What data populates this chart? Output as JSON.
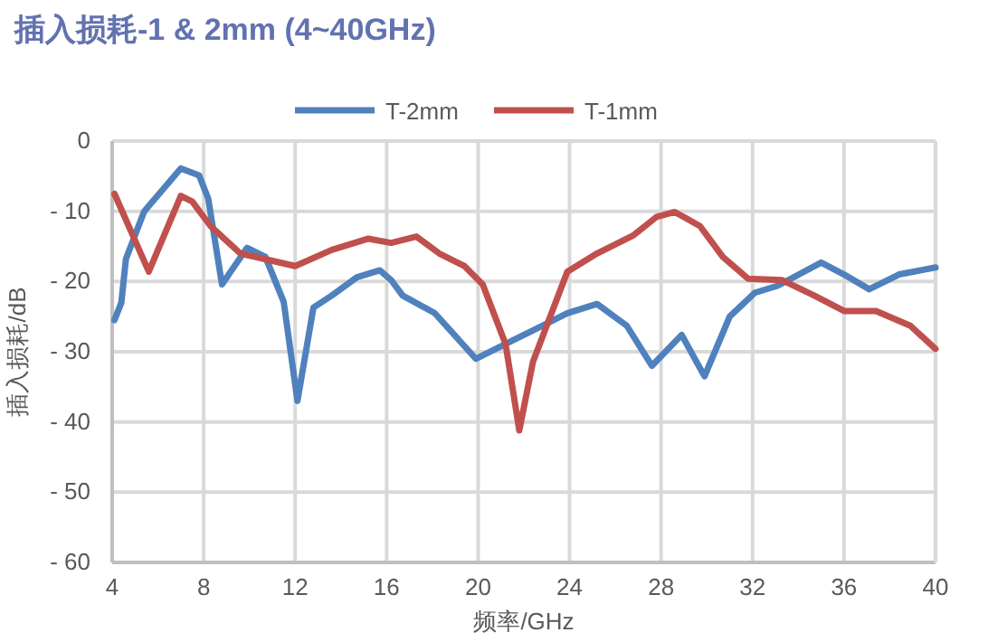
{
  "chart_data": {
    "type": "line",
    "title": "插入损耗-1 & 2mm (4~40GHz)",
    "xlabel": "频率/GHz",
    "ylabel": "插入损耗/dB",
    "series": [
      {
        "name": "T-2mm",
        "color": "#4f81bd",
        "x": [
          4.1,
          4.4,
          4.6,
          5.4,
          7.0,
          7.8,
          8.2,
          8.8,
          9.9,
          10.7,
          11.5,
          12.1,
          12.8,
          13.6,
          14.7,
          15.7,
          16.2,
          16.7,
          18.1,
          19.9,
          21.5,
          22.8,
          23.9,
          25.2,
          26.5,
          27.6,
          28.9,
          29.9,
          31.0,
          32.1,
          33.1,
          35.0,
          36.0,
          37.1,
          38.4,
          40.0
        ],
        "values": [
          -25.5,
          -23,
          -16.8,
          -10,
          -3.9,
          -4.9,
          -8.2,
          -20.4,
          -15.2,
          -16.5,
          -22.9,
          -37,
          -23.7,
          -22,
          -19.4,
          -18.4,
          -19.8,
          -22,
          -24.5,
          -31,
          -28.4,
          -26.3,
          -24.5,
          -23.2,
          -26.3,
          -32,
          -27.6,
          -33.5,
          -25,
          -21.6,
          -20.6,
          -17.3,
          -19,
          -21.1,
          -19,
          -18
        ]
      },
      {
        "name": "T-1mm",
        "color": "#c0504d",
        "x": [
          4.1,
          5.6,
          7.0,
          7.5,
          8.3,
          9.6,
          12.0,
          13.6,
          15.2,
          16.2,
          17.3,
          18.3,
          19.4,
          20.2,
          21.2,
          21.8,
          22.4,
          23.9,
          25.2,
          26.8,
          27.8,
          28.6,
          29.7,
          30.7,
          31.8,
          33.3,
          34.7,
          36.0,
          37.4,
          38.9,
          40.0
        ],
        "values": [
          -7.5,
          -18.6,
          -7.8,
          -8.6,
          -12.1,
          -16,
          -17.8,
          -15.5,
          -13.9,
          -14.5,
          -13.6,
          -16,
          -17.8,
          -20.4,
          -28.9,
          -41.2,
          -31.4,
          -18.6,
          -16,
          -13.4,
          -10.8,
          -10.1,
          -12.1,
          -16.5,
          -19.6,
          -19.8,
          -22,
          -24.2,
          -24.2,
          -26.3,
          -29.6
        ]
      }
    ],
    "xlim": [
      4,
      40
    ],
    "xticks": [
      4,
      8,
      12,
      16,
      20,
      24,
      28,
      32,
      36,
      40
    ],
    "ylim": [
      -60,
      0
    ],
    "yticks": [
      -60,
      -50,
      -40,
      -30,
      -20,
      -10,
      0
    ],
    "grid": true,
    "legend": "top"
  }
}
